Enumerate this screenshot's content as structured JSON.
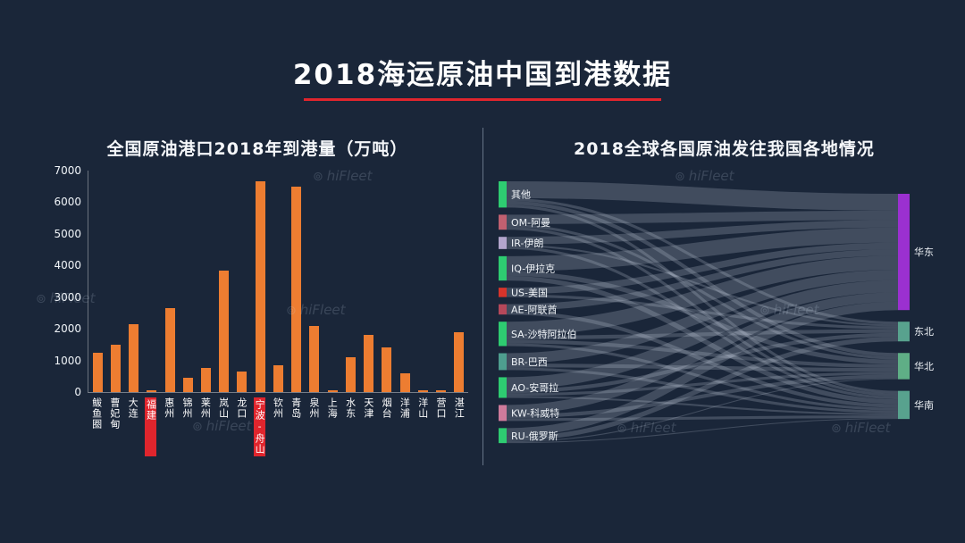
{
  "page": {
    "title": "2018海运原油中国到港数据",
    "watermark_text": "hiFleet",
    "watermark_icon": "⊚",
    "background": "#1a2639",
    "accent_red": "#e0252d"
  },
  "chart_data": [
    {
      "type": "bar",
      "title": "全国原油港口2018年到港量（万吨）",
      "categories": [
        "鲅鱼圈",
        "曹妃甸",
        "大连",
        "福建",
        "惠州",
        "锦州",
        "莱州",
        "岚山",
        "龙口",
        "宁波-舟山",
        "钦州",
        "青岛",
        "泉州",
        "上海",
        "水东",
        "天津",
        "烟台",
        "洋浦",
        "洋山",
        "营口",
        "湛江"
      ],
      "values": [
        1250,
        1500,
        2150,
        60,
        2650,
        450,
        750,
        3850,
        650,
        6650,
        850,
        6500,
        2100,
        70,
        1100,
        1800,
        1400,
        600,
        60,
        50,
        1900
      ],
      "highlighted_categories": [
        "福建",
        "宁波-舟山"
      ],
      "xlabel": "",
      "ylabel": "",
      "ylim": [
        0,
        7000
      ],
      "yticks": [
        0,
        1000,
        2000,
        3000,
        4000,
        5000,
        6000,
        7000
      ],
      "bar_color": "#ed7d31",
      "grid": false
    },
    {
      "type": "sankey",
      "title": "2018全球各国原油发往我国各地情况",
      "sources": [
        {
          "name": "其他",
          "color": "#2ecc71"
        },
        {
          "name": "OM-阿曼",
          "color": "#c06070"
        },
        {
          "name": "IR-伊朗",
          "color": "#b3a5cc"
        },
        {
          "name": "IQ-伊拉克",
          "color": "#2ecc71"
        },
        {
          "name": "US-美国",
          "color": "#d7342b"
        },
        {
          "name": "AE-阿联酋",
          "color": "#b5485a"
        },
        {
          "name": "SA-沙特阿拉伯",
          "color": "#2ecc71"
        },
        {
          "name": "BR-巴西",
          "color": "#4e9e8f"
        },
        {
          "name": "AO-安哥拉",
          "color": "#2ecc71"
        },
        {
          "name": "KW-科威特",
          "color": "#cf7b9b"
        },
        {
          "name": "RU-俄罗斯",
          "color": "#2ecc71"
        }
      ],
      "targets": [
        {
          "name": "华东",
          "color": "#9b30d0"
        },
        {
          "name": "东北",
          "color": "#58a28e"
        },
        {
          "name": "华北",
          "color": "#5fae86"
        },
        {
          "name": "华南",
          "color": "#58a28e"
        }
      ],
      "links": [
        {
          "source": "其他",
          "target": "华东",
          "value": 18
        },
        {
          "source": "其他",
          "target": "东北",
          "value": 3
        },
        {
          "source": "其他",
          "target": "华北",
          "value": 4
        },
        {
          "source": "其他",
          "target": "华南",
          "value": 3
        },
        {
          "source": "OM-阿曼",
          "target": "华东",
          "value": 10
        },
        {
          "source": "OM-阿曼",
          "target": "华北",
          "value": 3
        },
        {
          "source": "OM-阿曼",
          "target": "华南",
          "value": 3
        },
        {
          "source": "IR-伊朗",
          "target": "华东",
          "value": 8
        },
        {
          "source": "IR-伊朗",
          "target": "东北",
          "value": 2
        },
        {
          "source": "IR-伊朗",
          "target": "华南",
          "value": 3
        },
        {
          "source": "IQ-伊拉克",
          "target": "华东",
          "value": 16
        },
        {
          "source": "IQ-伊拉克",
          "target": "华北",
          "value": 5
        },
        {
          "source": "IQ-伊拉克",
          "target": "华南",
          "value": 5
        },
        {
          "source": "US-美国",
          "target": "华东",
          "value": 7
        },
        {
          "source": "US-美国",
          "target": "东北",
          "value": 3
        },
        {
          "source": "AE-阿联酋",
          "target": "华东",
          "value": 7
        },
        {
          "source": "AE-阿联酋",
          "target": "华南",
          "value": 4
        },
        {
          "source": "SA-沙特阿拉伯",
          "target": "华东",
          "value": 15
        },
        {
          "source": "SA-沙特阿拉伯",
          "target": "东北",
          "value": 4
        },
        {
          "source": "SA-沙特阿拉伯",
          "target": "华北",
          "value": 4
        },
        {
          "source": "SA-沙特阿拉伯",
          "target": "华南",
          "value": 3
        },
        {
          "source": "BR-巴西",
          "target": "华东",
          "value": 11
        },
        {
          "source": "BR-巴西",
          "target": "华北",
          "value": 4
        },
        {
          "source": "BR-巴西",
          "target": "华南",
          "value": 3
        },
        {
          "source": "AO-安哥拉",
          "target": "华东",
          "value": 13
        },
        {
          "source": "AO-安哥拉",
          "target": "东北",
          "value": 4
        },
        {
          "source": "AO-安哥拉",
          "target": "华北",
          "value": 3
        },
        {
          "source": "AO-安哥拉",
          "target": "华南",
          "value": 2
        },
        {
          "source": "KW-科威特",
          "target": "华东",
          "value": 10
        },
        {
          "source": "KW-科威特",
          "target": "华北",
          "value": 4
        },
        {
          "source": "KW-科威特",
          "target": "华南",
          "value": 3
        },
        {
          "source": "RU-俄罗斯",
          "target": "华东",
          "value": 9
        },
        {
          "source": "RU-俄罗斯",
          "target": "东北",
          "value": 5
        },
        {
          "source": "RU-俄罗斯",
          "target": "华北",
          "value": 1
        },
        {
          "source": "RU-俄罗斯",
          "target": "华南",
          "value": 1
        }
      ],
      "flow_color": "rgba(205,215,228,0.22)"
    }
  ]
}
